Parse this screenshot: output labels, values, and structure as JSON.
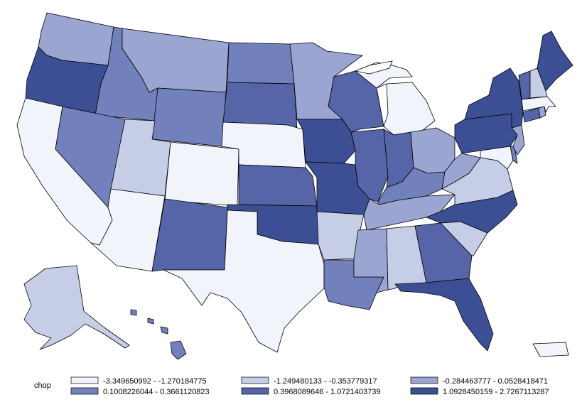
{
  "legend": {
    "title": "chop",
    "classes": [
      {
        "label": "-3.349650992 - -1.270184775",
        "color": "#f1f4fb"
      },
      {
        "label": "-1.249480133 - -0.353779317",
        "color": "#c6cde6"
      },
      {
        "label": "-0.284463777 - 0.0528418471",
        "color": "#9aa6d1"
      },
      {
        "label": "0.1008226044 - 0.3661120823",
        "color": "#7281bc"
      },
      {
        "label": "0.3968089646 - 1.0721403739",
        "color": "#5565a8"
      },
      {
        "label": "1.0928450159 - 2.7267113287",
        "color": "#3d4f94"
      }
    ]
  },
  "states": [
    {
      "id": "WA",
      "cls": 2
    },
    {
      "id": "OR",
      "cls": 5
    },
    {
      "id": "CA",
      "cls": 0
    },
    {
      "id": "ID",
      "cls": 3
    },
    {
      "id": "NV",
      "cls": 3
    },
    {
      "id": "MT",
      "cls": 2
    },
    {
      "id": "WY",
      "cls": 3
    },
    {
      "id": "UT",
      "cls": 1
    },
    {
      "id": "AZ",
      "cls": 0
    },
    {
      "id": "CO",
      "cls": 0
    },
    {
      "id": "NM",
      "cls": 4
    },
    {
      "id": "ND",
      "cls": 3
    },
    {
      "id": "SD",
      "cls": 4
    },
    {
      "id": "NE",
      "cls": 0
    },
    {
      "id": "KS",
      "cls": 4
    },
    {
      "id": "OK",
      "cls": 5
    },
    {
      "id": "TX",
      "cls": 0
    },
    {
      "id": "MN",
      "cls": 2
    },
    {
      "id": "IA",
      "cls": 5
    },
    {
      "id": "MO",
      "cls": 5
    },
    {
      "id": "AR",
      "cls": 1
    },
    {
      "id": "LA",
      "cls": 3
    },
    {
      "id": "WI",
      "cls": 4
    },
    {
      "id": "IL",
      "cls": 4
    },
    {
      "id": "MI",
      "cls": 0
    },
    {
      "id": "IN",
      "cls": 4
    },
    {
      "id": "OH",
      "cls": 2
    },
    {
      "id": "KY",
      "cls": 3
    },
    {
      "id": "TN",
      "cls": 2
    },
    {
      "id": "MS",
      "cls": 2
    },
    {
      "id": "AL",
      "cls": 1
    },
    {
      "id": "GA",
      "cls": 4
    },
    {
      "id": "FL",
      "cls": 5
    },
    {
      "id": "SC",
      "cls": 1
    },
    {
      "id": "NC",
      "cls": 5
    },
    {
      "id": "VA",
      "cls": 1
    },
    {
      "id": "WV",
      "cls": 2
    },
    {
      "id": "MD",
      "cls": 0
    },
    {
      "id": "DE",
      "cls": 3
    },
    {
      "id": "PA",
      "cls": 5
    },
    {
      "id": "NJ",
      "cls": 2
    },
    {
      "id": "NY",
      "cls": 5
    },
    {
      "id": "CT",
      "cls": 4
    },
    {
      "id": "RI",
      "cls": 2
    },
    {
      "id": "MA",
      "cls": 0
    },
    {
      "id": "VT",
      "cls": 4
    },
    {
      "id": "NH",
      "cls": 1
    },
    {
      "id": "ME",
      "cls": 5
    },
    {
      "id": "AK",
      "cls": 1
    },
    {
      "id": "HI",
      "cls": 3
    },
    {
      "id": "PR",
      "cls": 0
    }
  ]
}
